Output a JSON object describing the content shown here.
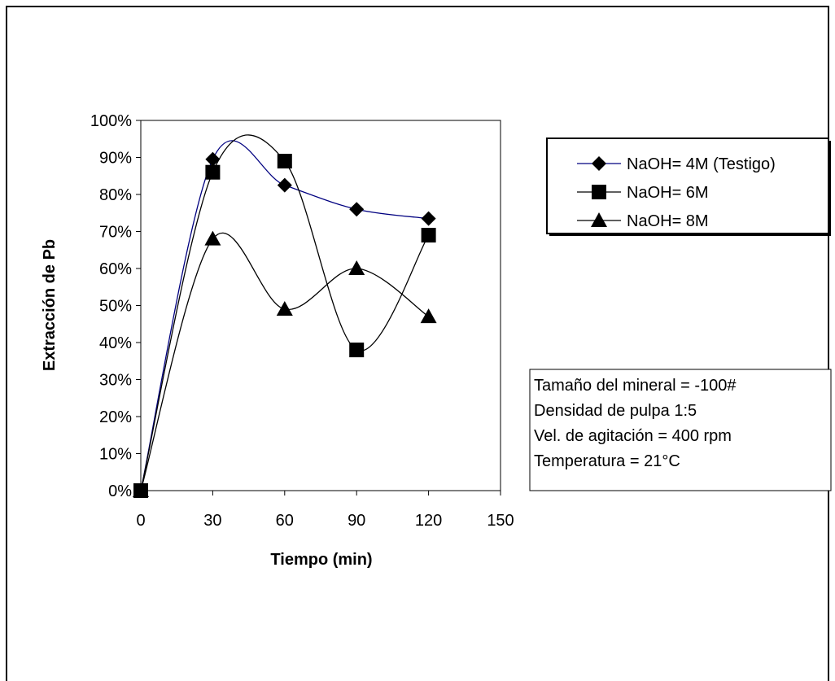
{
  "chart_data": {
    "type": "line",
    "title": "",
    "xlabel": "Tiempo (min)",
    "ylabel": "Extracción de Pb",
    "xlim": [
      0,
      150
    ],
    "ylim": [
      0,
      1
    ],
    "x_ticks": [
      "0",
      "30",
      "60",
      "90",
      "120",
      "150"
    ],
    "y_ticks": [
      "0%",
      "10%",
      "20%",
      "30%",
      "40%",
      "50%",
      "60%",
      "70%",
      "80%",
      "90%",
      "100%"
    ],
    "legend_position": "right",
    "grid": false,
    "series": [
      {
        "name": "NaOH= 4M (Testigo)",
        "marker": "diamond",
        "color": "#000080",
        "x": [
          0,
          30,
          60,
          90,
          120
        ],
        "y": [
          0.0,
          0.895,
          0.825,
          0.76,
          0.735
        ]
      },
      {
        "name": "NaOH= 6M",
        "marker": "square",
        "color": "#000000",
        "x": [
          0,
          30,
          60,
          90,
          120
        ],
        "y": [
          0.0,
          0.86,
          0.89,
          0.38,
          0.69
        ]
      },
      {
        "name": "NaOH= 8M",
        "marker": "triangle",
        "color": "#000000",
        "x": [
          0,
          30,
          60,
          90,
          120
        ],
        "y": [
          0.0,
          0.68,
          0.49,
          0.6,
          0.47
        ]
      }
    ],
    "annotation_lines": [
      "Tamaño del mineral = -100#",
      "Densidad de  pulpa 1:5",
      "Vel.  de agitación = 400 rpm",
      "Temperatura = 21°C"
    ]
  }
}
